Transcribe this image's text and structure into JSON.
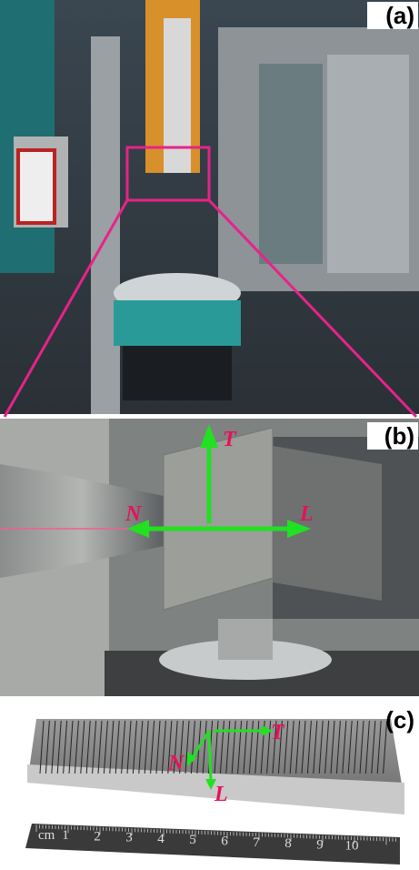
{
  "panels": [
    {
      "label": "(a)"
    },
    {
      "label": "(b)",
      "axes": {
        "T": "T",
        "N": "N",
        "L": "L"
      }
    },
    {
      "label": "(c)",
      "axes": {
        "T": "T",
        "N": "N",
        "L": "L"
      },
      "ruler": {
        "unit": "cm",
        "numbers": [
          "1",
          "2",
          "3",
          "4",
          "5",
          "6",
          "7",
          "8",
          "9",
          "10"
        ]
      }
    }
  ]
}
